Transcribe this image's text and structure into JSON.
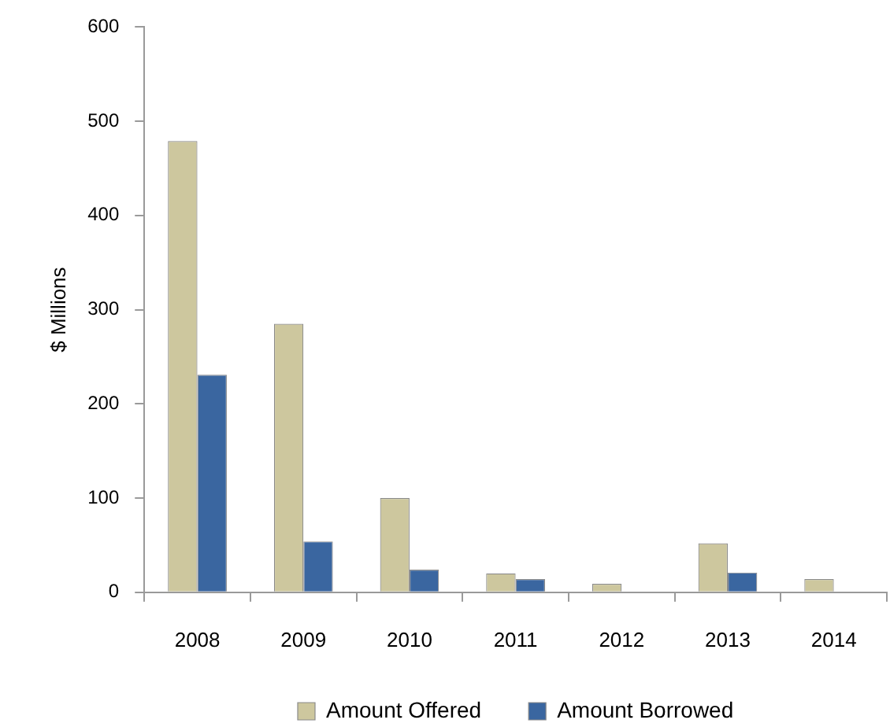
{
  "chart_data": {
    "type": "bar",
    "ylabel": "$ Millions",
    "categories": [
      "2008",
      "2009",
      "2010",
      "2011",
      "2012",
      "2013",
      "2014"
    ],
    "series": [
      {
        "name": "Amount Offered",
        "color": "#cdc79e",
        "values": [
          479,
          285,
          100,
          20,
          9,
          52,
          14
        ]
      },
      {
        "name": "Amount Borrowed",
        "color": "#3a66a0",
        "values": [
          231,
          54,
          24,
          14,
          null,
          21,
          null
        ]
      }
    ],
    "ylim": [
      0,
      600
    ],
    "yticks": [
      0,
      100,
      200,
      300,
      400,
      500,
      600
    ],
    "legend": "bottom"
  }
}
